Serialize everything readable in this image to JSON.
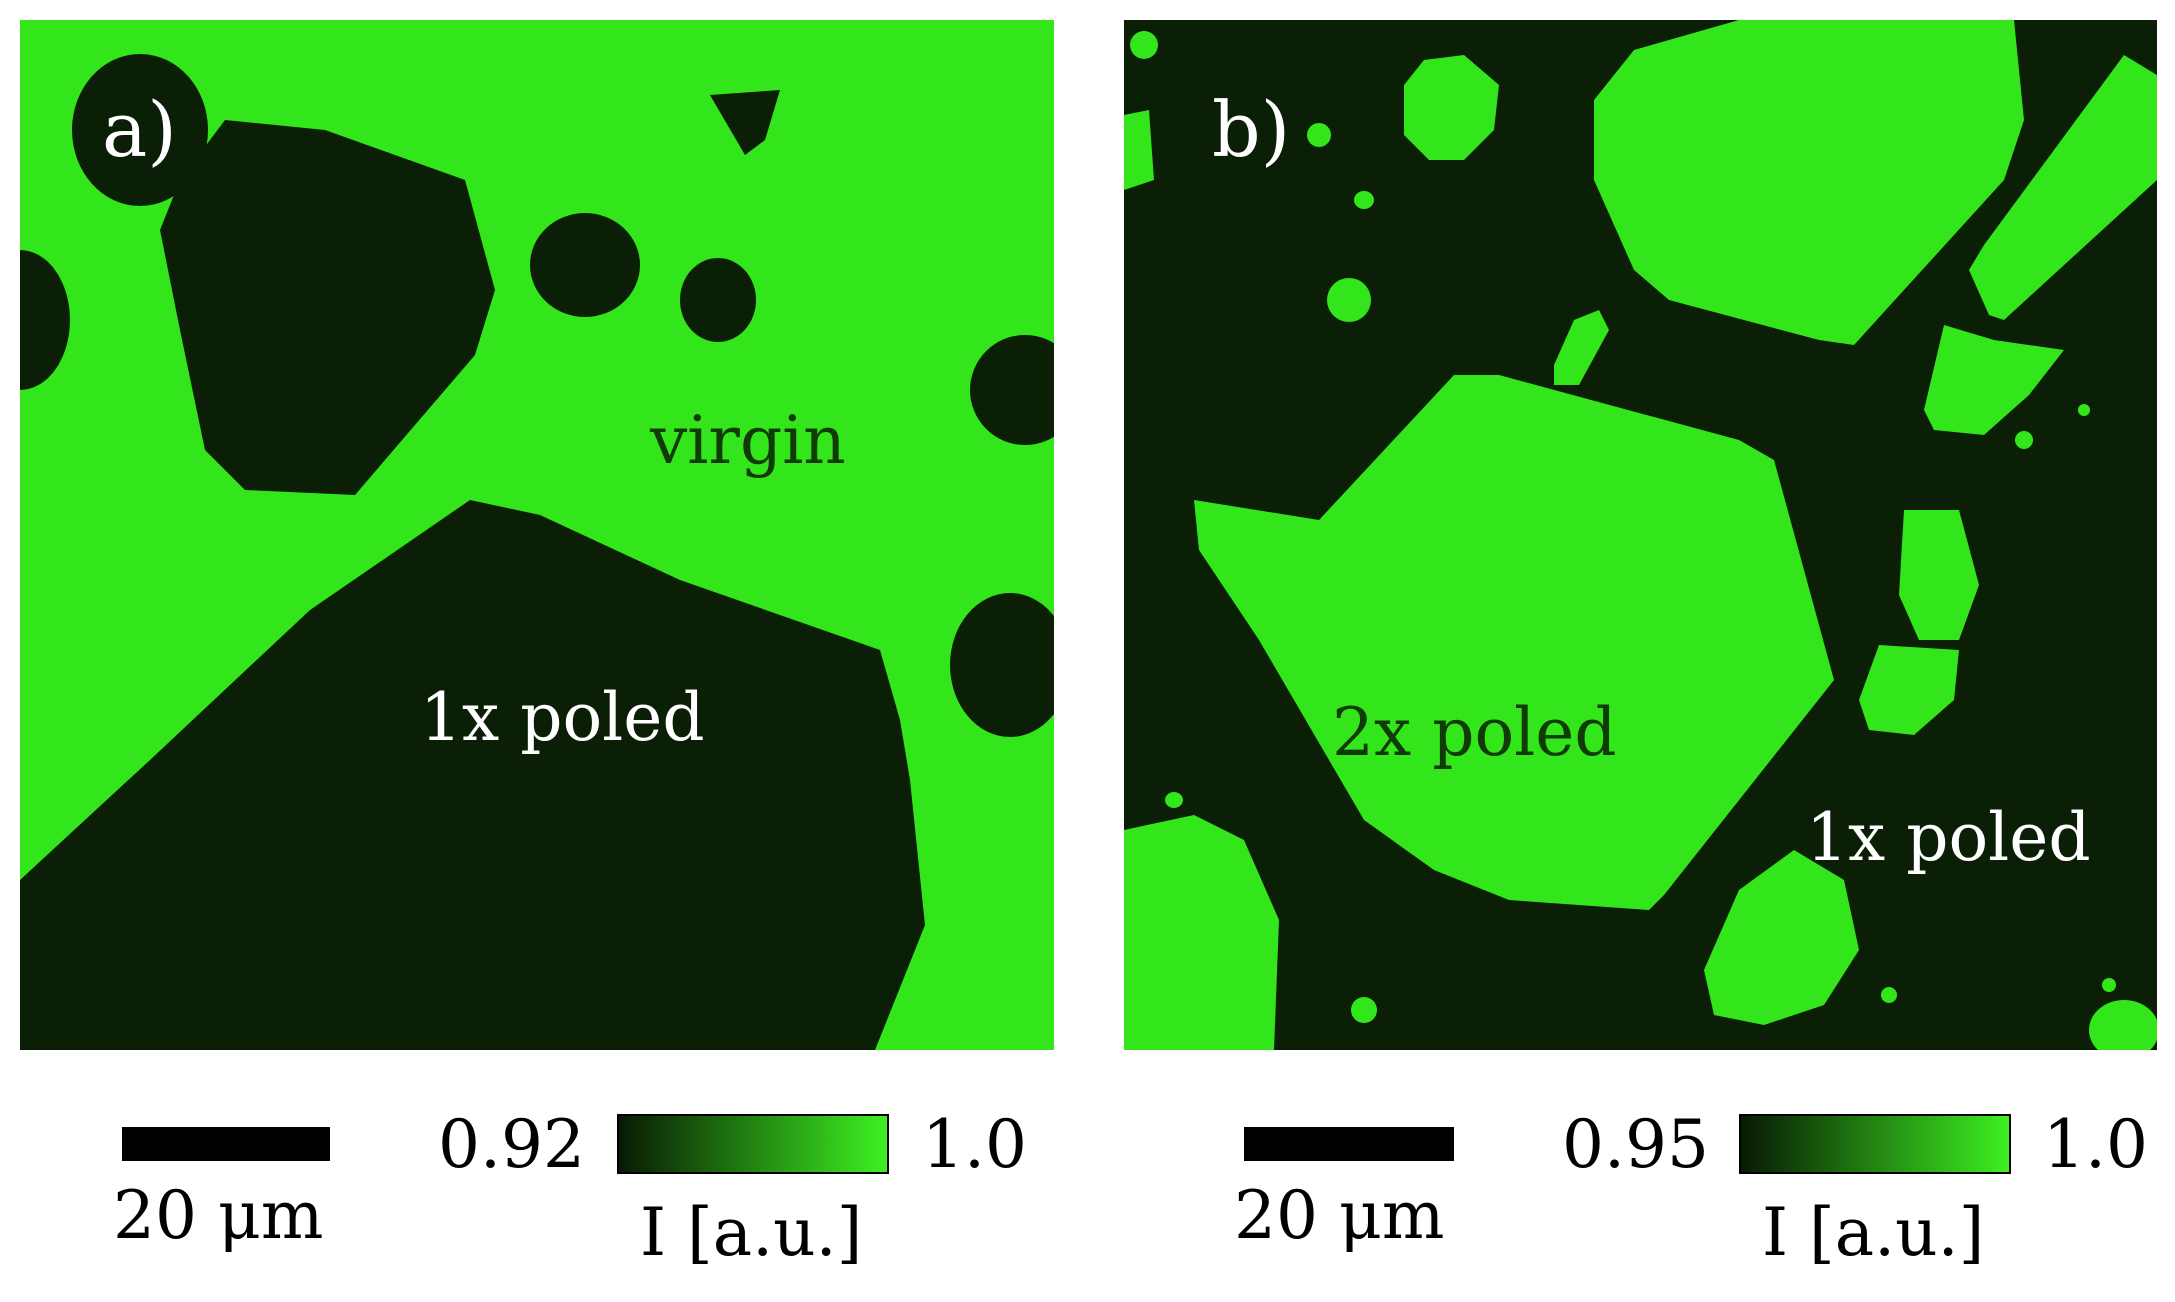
{
  "panels": [
    {
      "id": "a",
      "letter": "a)",
      "region_labels": [
        "virgin",
        "1x poled"
      ],
      "scale_bar": "20 μm",
      "colorbar": {
        "min": "0.92",
        "max": "1.0",
        "label": "I [a.u.]"
      }
    },
    {
      "id": "b",
      "letter": "b)",
      "region_labels": [
        "2x poled",
        "1x poled"
      ],
      "scale_bar": "20 μm",
      "colorbar": {
        "min": "0.95",
        "max": "1.0",
        "label": "I [a.u.]"
      }
    }
  ],
  "colors": {
    "bright_green": "#33e61b",
    "dark_green": "#0b1e06",
    "colormap_low": "#081a04",
    "colormap_high": "#3ef021"
  }
}
